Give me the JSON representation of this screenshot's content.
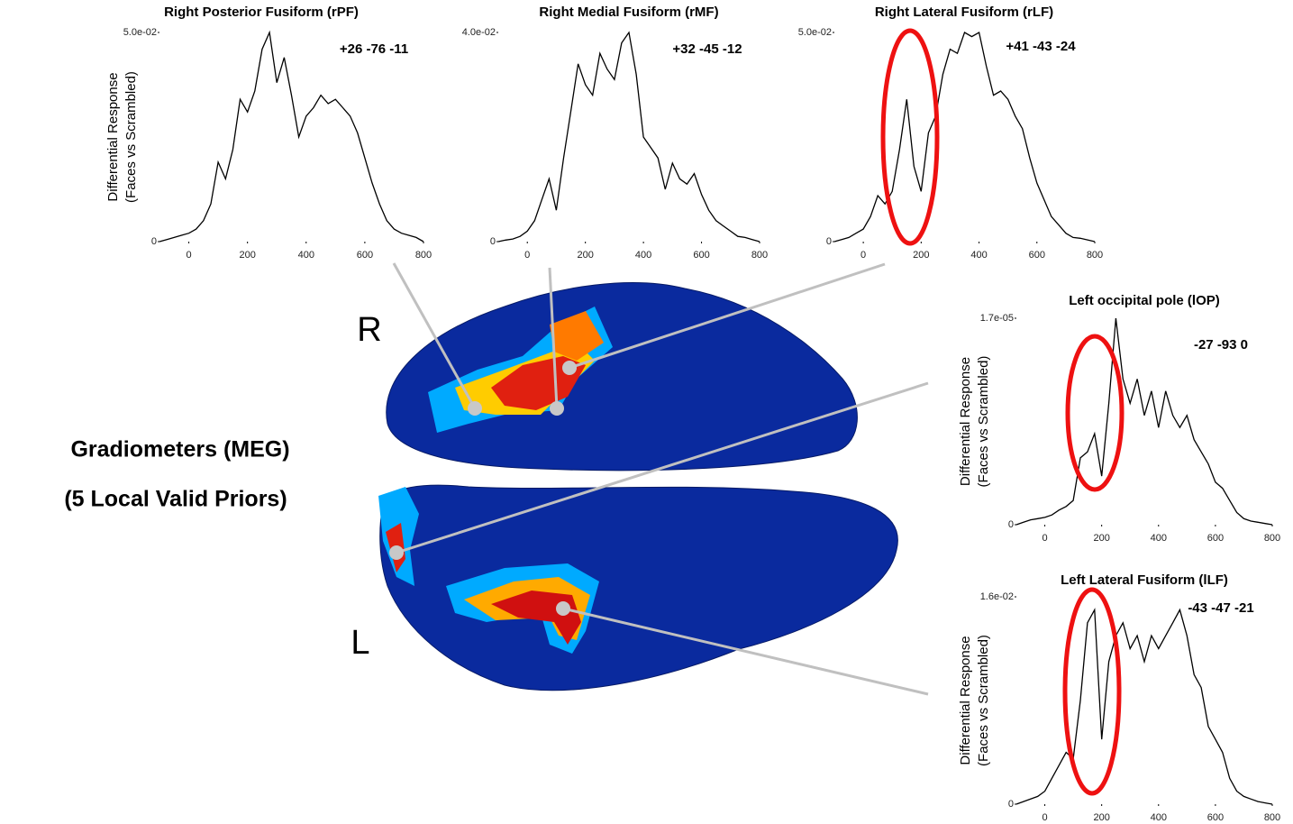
{
  "figure": {
    "title": "Gradiometers (MEG)",
    "subtitle": "(5 Local Valid Priors)",
    "right": "R",
    "left": "L"
  },
  "chart_data": [
    {
      "type": "line",
      "title": "Right Posterior Fusiform (rPF)",
      "annotation": "+26 -76 -11",
      "ylabel": [
        "Differential Response",
        "(Faces vs Scrambled)"
      ],
      "color": "#000000",
      "x": [
        -100,
        -75,
        -50,
        -25,
        0,
        25,
        50,
        75,
        100,
        125,
        150,
        175,
        200,
        225,
        250,
        275,
        300,
        325,
        350,
        375,
        400,
        425,
        450,
        475,
        500,
        525,
        550,
        575,
        600,
        625,
        650,
        675,
        700,
        725,
        750,
        775,
        800
      ],
      "values": [
        0,
        0.0005,
        0.001,
        0.0015,
        0.002,
        0.003,
        0.005,
        0.009,
        0.019,
        0.015,
        0.022,
        0.034,
        0.031,
        0.036,
        0.046,
        0.05,
        0.038,
        0.044,
        0.035,
        0.025,
        0.03,
        0.032,
        0.035,
        0.033,
        0.034,
        0.032,
        0.03,
        0.026,
        0.02,
        0.014,
        0.009,
        0.005,
        0.003,
        0.002,
        0.0015,
        0.001,
        0
      ],
      "xlim": [
        -100,
        800
      ],
      "xticks": [
        0,
        200,
        400,
        600,
        800
      ],
      "ylim": [
        0,
        0.05
      ],
      "yticks": [
        0,
        {
          "value": 0.05,
          "label": "5.0e-02"
        }
      ]
    },
    {
      "type": "line",
      "title": "Right Medial Fusiform (rMF)",
      "annotation": "+32 -45 -12",
      "color": "#000000",
      "x": [
        -100,
        -75,
        -50,
        -25,
        0,
        25,
        50,
        75,
        100,
        125,
        150,
        175,
        200,
        225,
        250,
        275,
        300,
        325,
        350,
        375,
        400,
        425,
        450,
        475,
        500,
        525,
        550,
        575,
        600,
        625,
        650,
        675,
        700,
        725,
        750,
        775,
        800
      ],
      "values": [
        0,
        0.0003,
        0.0005,
        0.001,
        0.002,
        0.004,
        0.008,
        0.012,
        0.006,
        0.016,
        0.025,
        0.034,
        0.03,
        0.028,
        0.036,
        0.033,
        0.031,
        0.038,
        0.04,
        0.032,
        0.02,
        0.018,
        0.016,
        0.01,
        0.015,
        0.012,
        0.011,
        0.013,
        0.009,
        0.006,
        0.004,
        0.003,
        0.002,
        0.001,
        0.0008,
        0.0004,
        0
      ],
      "xlim": [
        -100,
        800
      ],
      "xticks": [
        0,
        200,
        400,
        600,
        800
      ],
      "ylim": [
        0,
        0.04
      ],
      "yticks": [
        0,
        {
          "value": 0.04,
          "label": "4.0e-02"
        }
      ]
    },
    {
      "type": "line",
      "title": "Right Lateral Fusiform (rLF)",
      "annotation": "+41 -43 -24",
      "color": "#000000",
      "x": [
        -100,
        -75,
        -50,
        -25,
        0,
        25,
        50,
        75,
        100,
        125,
        150,
        175,
        200,
        225,
        250,
        275,
        300,
        325,
        350,
        375,
        400,
        425,
        450,
        475,
        500,
        525,
        550,
        575,
        600,
        625,
        650,
        675,
        700,
        725,
        750,
        775,
        800
      ],
      "values": [
        0,
        0.0005,
        0.001,
        0.002,
        0.003,
        0.006,
        0.011,
        0.009,
        0.012,
        0.022,
        0.034,
        0.018,
        0.012,
        0.026,
        0.03,
        0.04,
        0.046,
        0.045,
        0.05,
        0.049,
        0.05,
        0.042,
        0.035,
        0.036,
        0.034,
        0.03,
        0.027,
        0.02,
        0.014,
        0.01,
        0.006,
        0.004,
        0.002,
        0.001,
        0.0008,
        0.0004,
        0
      ],
      "xlim": [
        -100,
        800
      ],
      "xticks": [
        0,
        200,
        400,
        600,
        800
      ],
      "ylim": [
        0,
        0.05
      ],
      "yticks": [
        0,
        {
          "value": 0.05,
          "label": "5.0e-02"
        }
      ]
    },
    {
      "type": "line",
      "title": "Left occipital pole (lOP)",
      "annotation": "-27 -93 0",
      "ylabel": [
        "Differential Response",
        "(Faces vs Scrambled)"
      ],
      "color": "#000000",
      "x": [
        -100,
        -75,
        -50,
        -25,
        0,
        25,
        50,
        75,
        100,
        125,
        150,
        175,
        200,
        225,
        250,
        275,
        300,
        325,
        350,
        375,
        400,
        425,
        450,
        475,
        500,
        525,
        550,
        575,
        600,
        625,
        650,
        675,
        700,
        725,
        750,
        775,
        800
      ],
      "values": [
        0,
        2e-07,
        4e-07,
        5e-07,
        6e-07,
        8e-07,
        1.2e-06,
        1.5e-06,
        2e-06,
        5.5e-06,
        6e-06,
        7.5e-06,
        4e-06,
        1e-05,
        1.7e-05,
        1.2e-05,
        1e-05,
        1.2e-05,
        9e-06,
        1.1e-05,
        8e-06,
        1.1e-05,
        9e-06,
        8e-06,
        9e-06,
        7e-06,
        6e-06,
        5e-06,
        3.5e-06,
        3e-06,
        2e-06,
        1e-06,
        5e-07,
        3e-07,
        2e-07,
        1e-07,
        0
      ],
      "xlim": [
        -100,
        800
      ],
      "xticks": [
        0,
        200,
        400,
        600,
        800
      ],
      "ylim": [
        0,
        1.7e-05
      ],
      "yticks": [
        0,
        {
          "value": 1.7e-05,
          "label": "1.7e-05"
        }
      ]
    },
    {
      "type": "line",
      "title": "Left Lateral Fusiform (lLF)",
      "annotation": "-43 -47 -21",
      "ylabel": [
        "Differential Response",
        "(Faces vs Scrambled)"
      ],
      "color": "#000000",
      "x": [
        -100,
        -75,
        -50,
        -25,
        0,
        25,
        50,
        75,
        100,
        125,
        150,
        175,
        200,
        225,
        250,
        275,
        300,
        325,
        350,
        375,
        400,
        425,
        450,
        475,
        500,
        525,
        550,
        575,
        600,
        625,
        650,
        675,
        700,
        725,
        750,
        775,
        800
      ],
      "values": [
        0,
        0.0002,
        0.0004,
        0.0006,
        0.001,
        0.002,
        0.003,
        0.004,
        0.0035,
        0.008,
        0.014,
        0.015,
        0.005,
        0.011,
        0.013,
        0.014,
        0.012,
        0.013,
        0.011,
        0.013,
        0.012,
        0.013,
        0.014,
        0.015,
        0.013,
        0.01,
        0.009,
        0.006,
        0.005,
        0.004,
        0.002,
        0.001,
        0.0006,
        0.0004,
        0.0002,
        0.0001,
        0
      ],
      "xlim": [
        -100,
        800
      ],
      "xticks": [
        0,
        200,
        400,
        600,
        800
      ],
      "ylim": [
        0,
        0.016
      ],
      "yticks": [
        0,
        {
          "value": 0.016,
          "label": "1.6e-02"
        }
      ]
    }
  ]
}
